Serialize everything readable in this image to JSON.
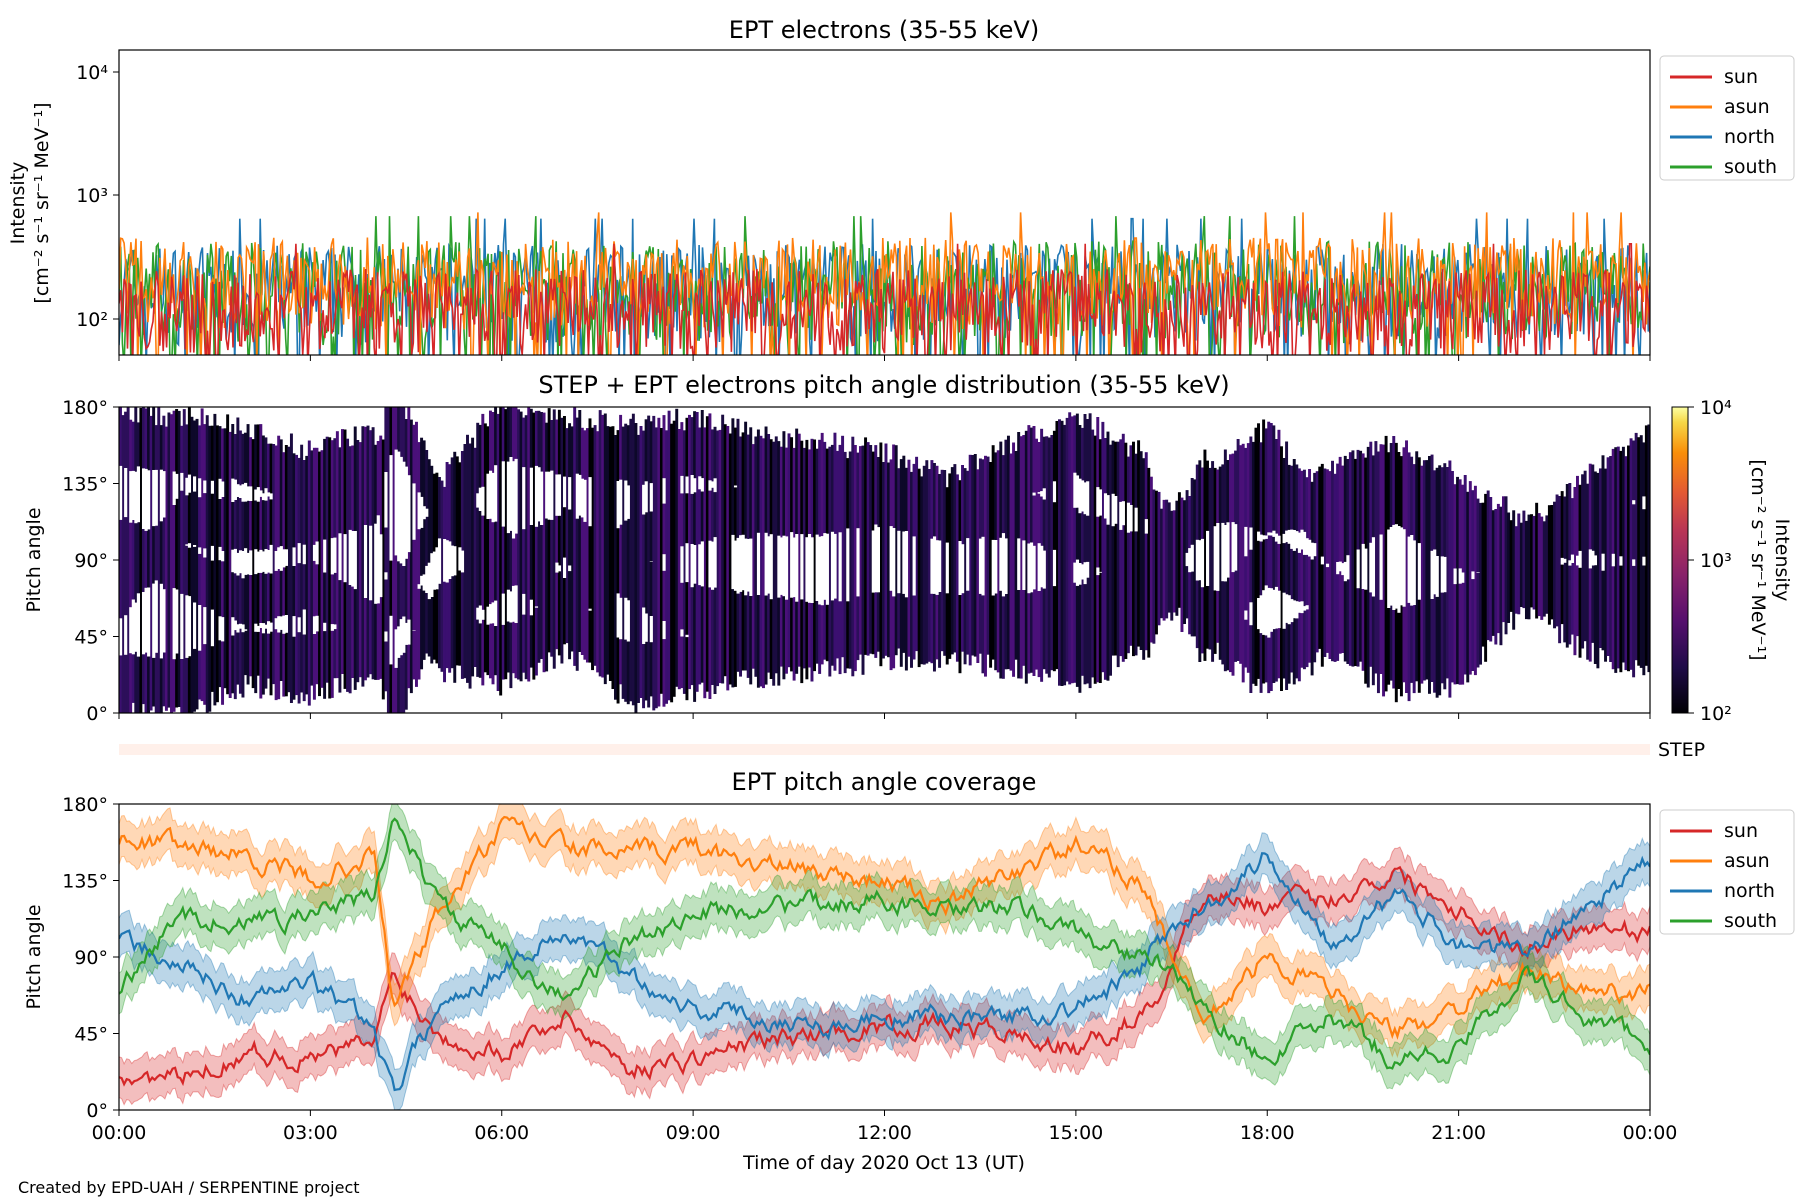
{
  "chart_data": [
    {
      "type": "line",
      "title": "EPT electrons (35-55 keV)",
      "ylabel_line1": "Intensity",
      "ylabel_line2": "[cm⁻² s⁻¹ sr⁻¹ MeV⁻¹]",
      "yscale": "log",
      "ylim": [
        50,
        15000
      ],
      "yticks": [
        "10²",
        "10³",
        "10⁴"
      ],
      "xlim_hours": [
        0,
        24
      ],
      "legend_position": "outside-right-top",
      "series": [
        {
          "name": "sun",
          "color": "#d62728",
          "typical_range": [
            50,
            250
          ]
        },
        {
          "name": "asun",
          "color": "#ff7f0e",
          "typical_range": [
            80,
            450
          ]
        },
        {
          "name": "north",
          "color": "#1f77b4",
          "typical_range": [
            60,
            400
          ]
        },
        {
          "name": "south",
          "color": "#2ca02c",
          "typical_range": [
            60,
            420
          ]
        }
      ]
    },
    {
      "type": "heatmap",
      "title": "STEP + EPT electrons pitch angle distribution (35-55 keV)",
      "ylabel": "Pitch angle",
      "ylim": [
        0,
        180
      ],
      "yticks": [
        "0°",
        "45°",
        "90°",
        "135°",
        "180°"
      ],
      "xlim_hours": [
        0,
        24
      ],
      "colorbar": {
        "label_line1": "Intensity",
        "label_line2": "[cm⁻² s⁻¹ sr⁻¹ MeV⁻¹]",
        "scale": "log",
        "range": [
          100,
          10000
        ],
        "ticks": [
          "10²",
          "10³",
          "10⁴"
        ],
        "colormap": "inferno"
      }
    },
    {
      "type": "bar",
      "label": "STEP",
      "color": "#fff0ea"
    },
    {
      "type": "line",
      "title": "EPT pitch angle coverage",
      "ylabel": "Pitch angle",
      "ylim": [
        0,
        180
      ],
      "yticks": [
        "0°",
        "45°",
        "90°",
        "135°",
        "180°"
      ],
      "xlim_hours": [
        0,
        24
      ],
      "xticks": [
        "00:00",
        "03:00",
        "06:00",
        "09:00",
        "12:00",
        "15:00",
        "18:00",
        "21:00",
        "00:00"
      ],
      "xlabel": "Time of day 2020 Oct 13 (UT)",
      "legend_position": "outside-right-top",
      "band_halfwidth_deg": 12,
      "x": [
        0,
        1,
        2,
        3,
        4,
        4.3,
        5,
        6,
        7,
        8,
        9,
        10,
        11,
        12,
        13,
        14,
        15,
        16,
        16.2,
        17,
        18,
        19,
        20,
        21,
        22,
        23,
        24
      ],
      "series": [
        {
          "name": "sun",
          "color": "#d62728",
          "values": [
            20,
            18,
            35,
            30,
            40,
            80,
            45,
            35,
            55,
            25,
            30,
            40,
            45,
            50,
            50,
            45,
            35,
            55,
            60,
            130,
            120,
            125,
            140,
            120,
            95,
            110,
            105
          ]
        },
        {
          "name": "asun",
          "color": "#ff7f0e",
          "values": [
            160,
            155,
            150,
            135,
            150,
            60,
            115,
            165,
            155,
            150,
            155,
            145,
            140,
            135,
            120,
            140,
            155,
            135,
            120,
            50,
            90,
            70,
            45,
            60,
            80,
            70,
            70
          ]
        },
        {
          "name": "north",
          "color": "#1f77b4",
          "values": [
            100,
            85,
            65,
            75,
            50,
            10,
            60,
            85,
            105,
            80,
            60,
            55,
            50,
            55,
            55,
            55,
            60,
            80,
            95,
            120,
            150,
            100,
            125,
            100,
            90,
            120,
            145
          ]
        },
        {
          "name": "south",
          "color": "#2ca02c",
          "values": [
            70,
            115,
            110,
            115,
            125,
            175,
            120,
            95,
            65,
            100,
            115,
            120,
            120,
            125,
            115,
            120,
            105,
            90,
            90,
            60,
            30,
            55,
            30,
            35,
            80,
            55,
            40
          ]
        }
      ]
    }
  ],
  "footer": {
    "credit": "Created by EPD-UAH / SERPENTINE project"
  }
}
